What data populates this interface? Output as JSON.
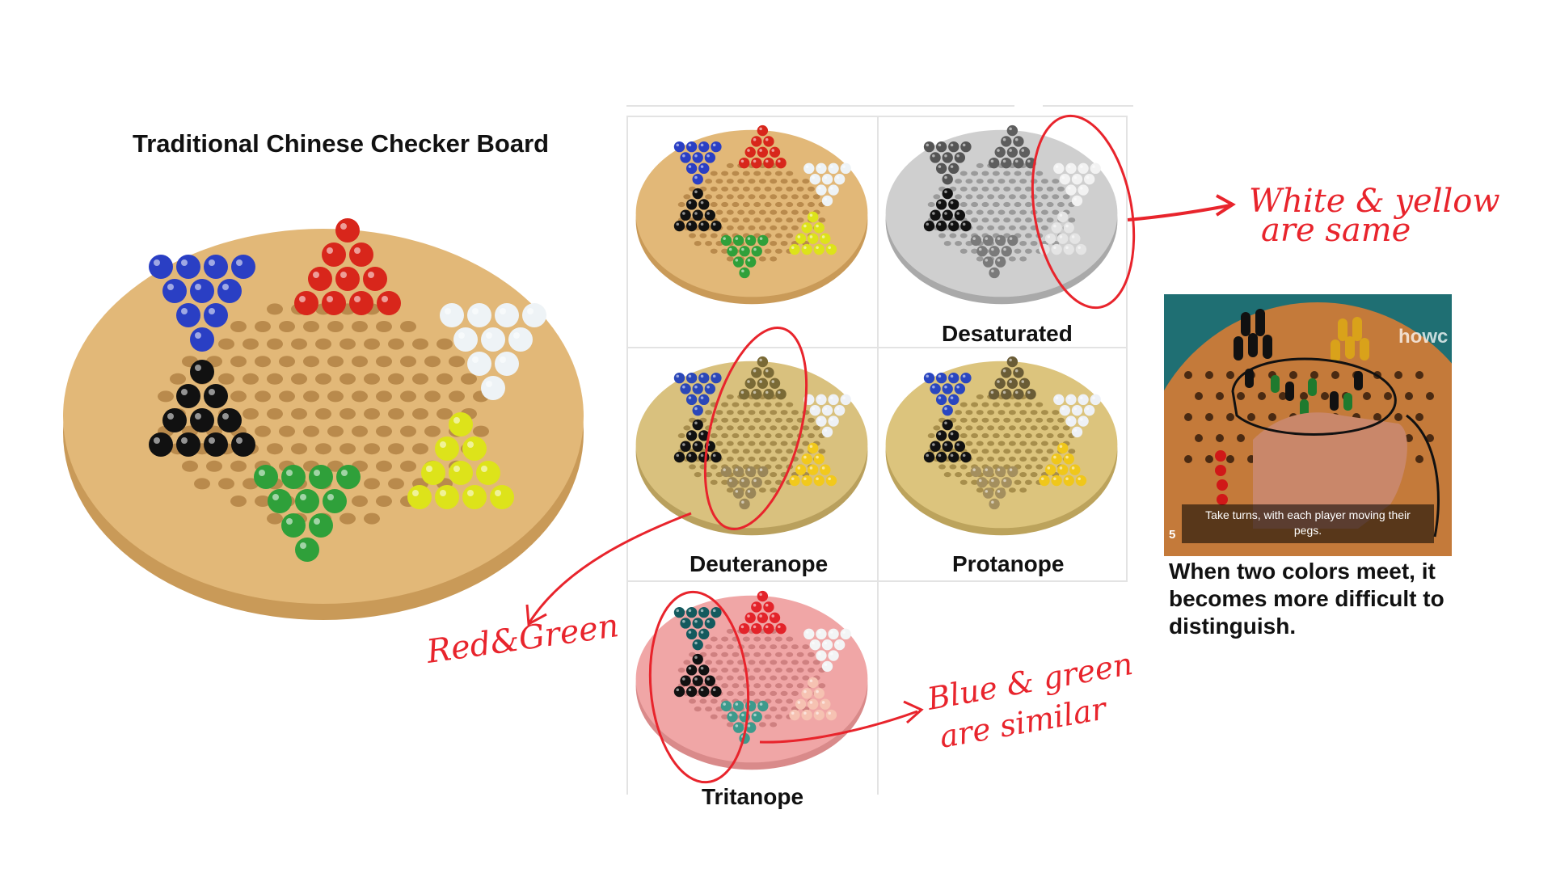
{
  "title": "Traditional Chinese Checker Board",
  "simulations": [
    {
      "label": "",
      "key": "original"
    },
    {
      "label": "Desaturated",
      "key": "desaturated"
    },
    {
      "label": "Deuteranope",
      "key": "deuteranope"
    },
    {
      "label": "Protanope",
      "key": "protanope"
    },
    {
      "label": "Tritanope",
      "key": "tritanope"
    }
  ],
  "annotations": {
    "white_yellow": [
      "White & yellow",
      "are same"
    ],
    "red_green": "Red&Green",
    "blue_green": [
      "Blue & green",
      "are similar"
    ]
  },
  "video": {
    "caption": [
      "Take turns, with each player moving their",
      "pegs."
    ],
    "watermark": "howc",
    "number": "5"
  },
  "note": [
    "When two colors meet, it",
    "becomes more difficult to",
    "distinguish."
  ],
  "palettes": {
    "original": {
      "wood": "#e2b878",
      "woodEdge": "#c99a58",
      "hole": "#b98a4c",
      "blue": "#2a3fc4",
      "red": "#d8261b",
      "white": "#eef3f6",
      "black": "#111111",
      "green": "#2fa03a",
      "yellow": "#dde31a"
    },
    "desaturated": {
      "wood": "#cfcfcf",
      "woodEdge": "#a9a9a9",
      "hole": "#9a9a9a",
      "blue": "#555555",
      "red": "#5e5e5e",
      "white": "#f2f2f2",
      "black": "#111111",
      "green": "#7a7a7a",
      "yellow": "#e4e4e4"
    },
    "deuteranope": {
      "wood": "#d9c17e",
      "woodEdge": "#b9a05d",
      "hole": "#a68c4c",
      "blue": "#2b47b8",
      "red": "#7a6a36",
      "white": "#eef1f6",
      "black": "#111111",
      "green": "#9a8658",
      "yellow": "#f2c91c"
    },
    "protanope": {
      "wood": "#dcc47d",
      "woodEdge": "#bca35c",
      "hole": "#a78e4b",
      "blue": "#2a46c0",
      "red": "#6a5c36",
      "white": "#eef1f6",
      "black": "#111111",
      "green": "#a48f5e",
      "yellow": "#f0c71a"
    },
    "tritanope": {
      "wood": "#f0a6a6",
      "woodEdge": "#d98a8a",
      "hole": "#cf8080",
      "blue": "#145a5e",
      "red": "#e3232a",
      "white": "#f3f4f5",
      "black": "#111111",
      "green": "#3d9a8c",
      "yellow": "#f6c2b2"
    }
  }
}
